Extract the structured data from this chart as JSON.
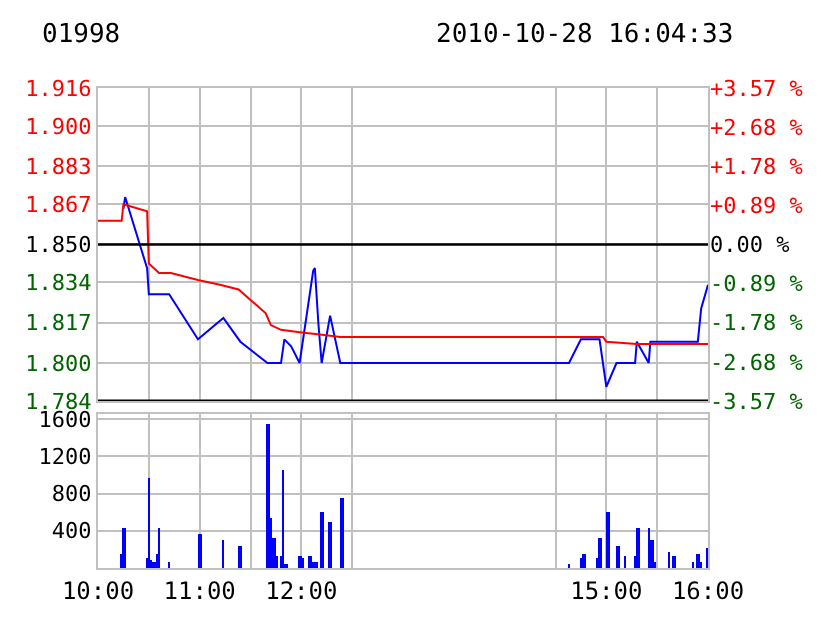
{
  "chart_data": [
    {
      "type": "line",
      "title": "01998",
      "subtitle": "2010-10-28 16:04:33",
      "series": [
        {
          "color": "#0000ff",
          "x": [
            10.25,
            10.267,
            10.483,
            10.5,
            10.7,
            10.983,
            11.233,
            11.4,
            11.667,
            11.8,
            11.833,
            11.9,
            11.983,
            12.117,
            12.133,
            12.167,
            12.2,
            12.283,
            12.383,
            14.633,
            14.75,
            14.933,
            15,
            15.1,
            15.283,
            15.3,
            15.417,
            15.433,
            15.9,
            15.933,
            16
          ],
          "values": [
            1.865,
            1.87,
            1.84,
            1.829,
            1.829,
            1.81,
            1.819,
            1.809,
            1.8,
            1.8,
            1.81,
            1.807,
            1.8,
            1.839,
            1.84,
            1.817,
            1.8,
            1.82,
            1.8,
            1.8,
            1.81,
            1.81,
            1.79,
            1.8,
            1.8,
            1.809,
            1.8,
            1.809,
            1.809,
            1.823,
            1.833
          ]
        },
        {
          "color": "#ff0000",
          "x": [
            10,
            10.233,
            10.25,
            10.483,
            10.5,
            10.6,
            10.717,
            10.983,
            11.2,
            11.383,
            11.517,
            11.65,
            11.7,
            11.8,
            11.983,
            12.183,
            12.383,
            14.967,
            15,
            15.3,
            16
          ],
          "values": [
            1.86,
            1.86,
            1.867,
            1.864,
            1.842,
            1.838,
            1.838,
            1.835,
            1.833,
            1.831,
            1.826,
            1.821,
            1.816,
            1.814,
            1.813,
            1.812,
            1.811,
            1.811,
            1.809,
            1.808,
            1.808
          ]
        }
      ],
      "xlim": [
        10,
        16
      ],
      "xticks": [
        10,
        10.5,
        11,
        11.5,
        12,
        12.5,
        14.5,
        15,
        15.5,
        16
      ],
      "ylim": [
        1.784,
        1.916
      ],
      "yticks": [
        1.784,
        {
          "value": 1.8,
          "label": "1.800"
        },
        1.817,
        1.834,
        {
          "value": 1.85,
          "label": "1.850"
        },
        1.867,
        1.883,
        {
          "value": 1.9,
          "label": "1.900"
        },
        1.916
      ],
      "y2lim": [
        -3.57,
        3.57
      ],
      "y2ticks": [
        {
          "value": -3.57,
          "label": "-3.57 %"
        },
        {
          "value": -2.68,
          "label": "-2.68 %"
        },
        {
          "value": -1.78,
          "label": "-1.78 %"
        },
        {
          "value": -0.89,
          "label": "-0.89 %"
        },
        {
          "value": 0,
          "label": "0.00 %"
        },
        {
          "value": 0.89,
          "label": "+0.89 %"
        },
        {
          "value": 1.78,
          "label": "+1.78 %"
        },
        {
          "value": 2.68,
          "label": "+2.68 %"
        },
        {
          "value": 3.57,
          "label": "+3.57 %"
        }
      ],
      "ref_lines": [
        {
          "axis": "y",
          "value": 1.85,
          "color": "#000000"
        }
      ],
      "grid": true,
      "tick_labels": "y",
      "marker": "none",
      "line_style": "solid"
    },
    {
      "type": "bar",
      "color": "#0000ff",
      "x": [
        10.233,
        10.25,
        10.483,
        10.5,
        10.517,
        10.55,
        10.583,
        10.6,
        10.7,
        11,
        11.233,
        11.4,
        11.667,
        11.7,
        11.733,
        11.75,
        11.8,
        11.817,
        11.85,
        11.983,
        12.017,
        12.083,
        12.117,
        12.15,
        12.2,
        12.283,
        12.4,
        14.633,
        14.75,
        14.783,
        14.917,
        14.933,
        15.017,
        15.117,
        15.183,
        15.283,
        15.317,
        15.417,
        15.45,
        15.467,
        15.617,
        15.667,
        15.85,
        15.9,
        15.933,
        16
      ],
      "values": [
        150,
        420,
        110,
        970,
        80,
        50,
        150,
        420,
        60,
        360,
        300,
        230,
        1550,
        530,
        320,
        120,
        130,
        1040,
        40,
        130,
        110,
        130,
        60,
        60,
        590,
        490,
        740,
        40,
        110,
        150,
        110,
        320,
        590,
        230,
        130,
        130,
        420,
        420,
        300,
        60,
        170,
        130,
        60,
        150,
        60,
        210
      ],
      "xlim": [
        10,
        16
      ],
      "xticks": [
        {
          "value": 10,
          "label": "10:00"
        },
        {
          "value": 10.5,
          "label": null
        },
        {
          "value": 11,
          "label": "11:00"
        },
        {
          "value": 11.5,
          "label": null
        },
        {
          "value": 12,
          "label": "12:00"
        },
        {
          "value": 12.5,
          "label": null
        },
        {
          "value": 14.5,
          "label": null
        },
        {
          "value": 15,
          "label": "15:00"
        },
        {
          "value": 15.5,
          "label": null
        },
        {
          "value": 16,
          "label": "16:00"
        }
      ],
      "ylim": [
        0,
        1650
      ],
      "yticks": [
        400,
        800,
        1200,
        1600
      ],
      "grid": true
    }
  ]
}
